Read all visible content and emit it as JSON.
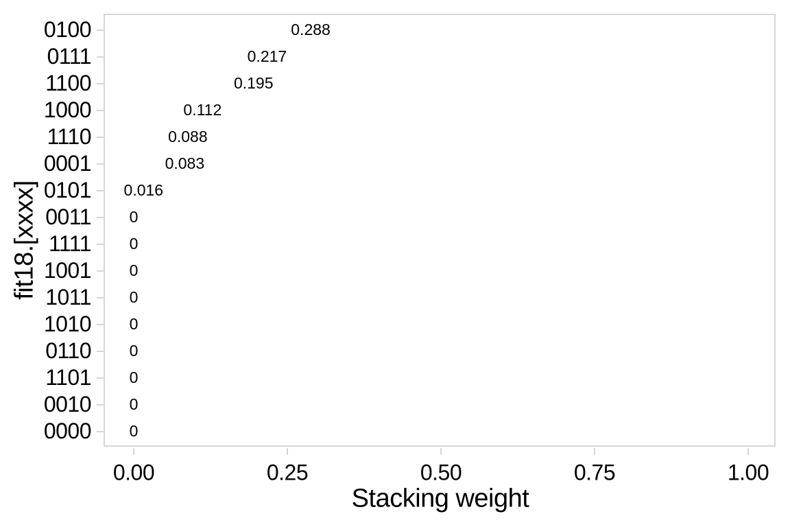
{
  "colors": {
    "text": "#000000",
    "axis_line": "#d6d6d6",
    "background": "#ffffff"
  },
  "x_axis_title": "Stacking weight",
  "y_axis_title": "fit18.[xxxx]",
  "chart_data": {
    "type": "scatter",
    "render": "text-labels",
    "orientation": "horizontal",
    "title": "",
    "xlabel": "Stacking weight",
    "ylabel": "fit18.[xxxx]",
    "categories": [
      "0100",
      "0111",
      "1100",
      "1000",
      "1110",
      "0001",
      "0101",
      "0011",
      "1111",
      "1001",
      "1011",
      "1010",
      "0110",
      "1101",
      "0010",
      "0000"
    ],
    "values": [
      0.288,
      0.217,
      0.195,
      0.112,
      0.088,
      0.083,
      0.016,
      0,
      0,
      0,
      0,
      0,
      0,
      0,
      0,
      0
    ],
    "value_labels": [
      "0.288",
      "0.217",
      "0.195",
      "0.112",
      "0.088",
      "0.083",
      "0.016",
      "0",
      "0",
      "0",
      "0",
      "0",
      "0",
      "0",
      "0",
      "0"
    ],
    "x_ticks": [
      0.0,
      0.25,
      0.5,
      0.75,
      1.0
    ],
    "x_tick_labels": [
      "0.00",
      "0.25",
      "0.50",
      "0.75",
      "1.00"
    ],
    "xlim": [
      -0.05,
      1.05
    ],
    "grid": false,
    "legend": null
  }
}
